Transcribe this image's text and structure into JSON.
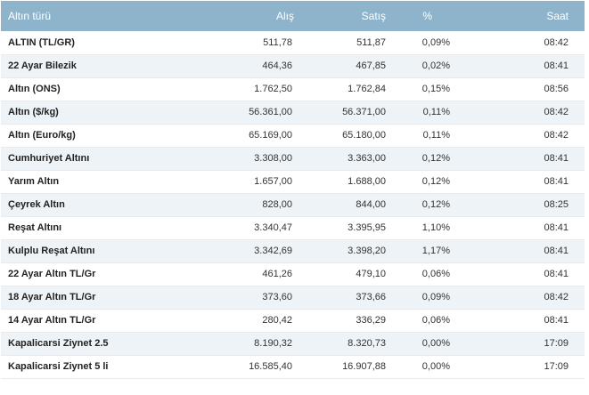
{
  "table": {
    "headers": {
      "name": "Altın türü",
      "buy": "Alış",
      "sell": "Satış",
      "change": "%",
      "time": "Saat"
    },
    "rows": [
      {
        "name": "ALTIN (TL/GR)",
        "buy": "511,78",
        "sell": "511,87",
        "change": "0,09%",
        "time": "08:42"
      },
      {
        "name": "22 Ayar Bilezik",
        "buy": "464,36",
        "sell": "467,85",
        "change": "0,02%",
        "time": "08:41"
      },
      {
        "name": "Altın (ONS)",
        "buy": "1.762,50",
        "sell": "1.762,84",
        "change": "0,15%",
        "time": "08:56"
      },
      {
        "name": "Altın ($/kg)",
        "buy": "56.361,00",
        "sell": "56.371,00",
        "change": "0,11%",
        "time": "08:42"
      },
      {
        "name": "Altın (Euro/kg)",
        "buy": "65.169,00",
        "sell": "65.180,00",
        "change": "0,11%",
        "time": "08:42"
      },
      {
        "name": "Cumhuriyet Altını",
        "buy": "3.308,00",
        "sell": "3.363,00",
        "change": "0,12%",
        "time": "08:41"
      },
      {
        "name": "Yarım Altın",
        "buy": "1.657,00",
        "sell": "1.688,00",
        "change": "0,12%",
        "time": "08:41"
      },
      {
        "name": "Çeyrek Altın",
        "buy": "828,00",
        "sell": "844,00",
        "change": "0,12%",
        "time": "08:25"
      },
      {
        "name": "Reşat Altını",
        "buy": "3.340,47",
        "sell": "3.395,95",
        "change": "1,10%",
        "time": "08:41"
      },
      {
        "name": "Kulplu Reşat Altını",
        "buy": "3.342,69",
        "sell": "3.398,20",
        "change": "1,17%",
        "time": "08:41"
      },
      {
        "name": "22 Ayar Altın TL/Gr",
        "buy": "461,26",
        "sell": "479,10",
        "change": "0,06%",
        "time": "08:41"
      },
      {
        "name": "18 Ayar Altın TL/Gr",
        "buy": "373,60",
        "sell": "373,66",
        "change": "0,09%",
        "time": "08:42"
      },
      {
        "name": "14 Ayar Altın TL/Gr",
        "buy": "280,42",
        "sell": "336,29",
        "change": "0,06%",
        "time": "08:41"
      },
      {
        "name": "Kapalicarsi Ziynet 2.5",
        "buy": "8.190,32",
        "sell": "8.320,73",
        "change": "0,00%",
        "time": "17:09"
      },
      {
        "name": "Kapalicarsi Ziynet 5 li",
        "buy": "16.585,40",
        "sell": "16.907,88",
        "change": "0,00%",
        "time": "17:09"
      }
    ]
  },
  "colors": {
    "header_bg": "#8eb4cb",
    "header_text": "#ffffff",
    "row_alt_bg": "#edf3f7",
    "row_bg": "#ffffff"
  }
}
